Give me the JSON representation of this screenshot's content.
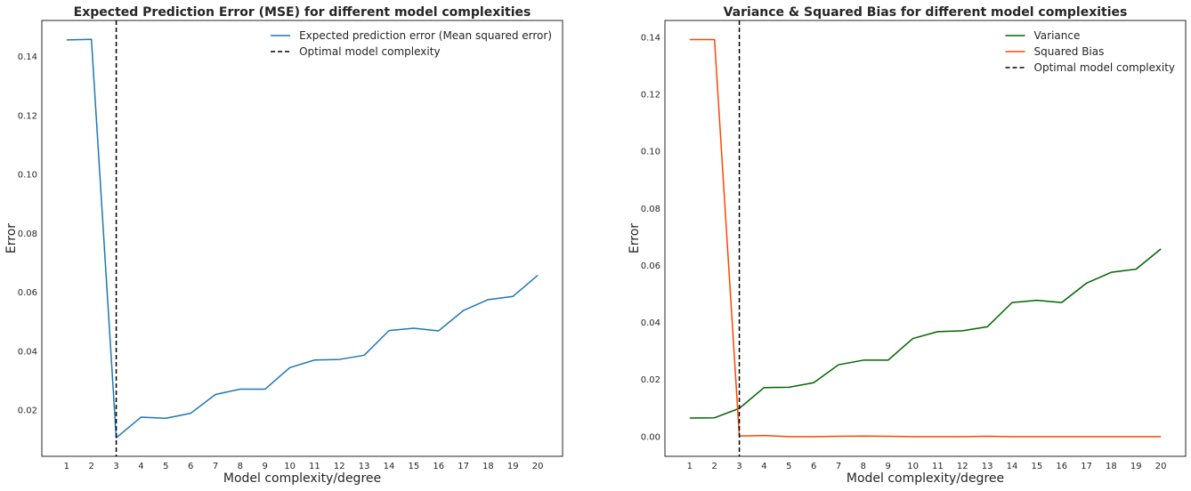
{
  "chart_data": [
    {
      "type": "line",
      "title": "Expected Prediction Error (MSE) for different model complexities",
      "xlabel": "Model complexity/degree",
      "ylabel": "Error",
      "x": [
        1,
        2,
        3,
        4,
        5,
        6,
        7,
        8,
        9,
        10,
        11,
        12,
        13,
        14,
        15,
        16,
        17,
        18,
        19,
        20
      ],
      "xticks": [
        "1",
        "2",
        "3",
        "4",
        "5",
        "6",
        "7",
        "8",
        "9",
        "10",
        "11",
        "12",
        "13",
        "14",
        "15",
        "16",
        "17",
        "18",
        "19",
        "20"
      ],
      "xlim": [
        0,
        21
      ],
      "ylim": [
        0.0043,
        0.1523
      ],
      "yticks": [
        "0.02",
        "0.04",
        "0.06",
        "0.08",
        "0.10",
        "0.12",
        "0.14"
      ],
      "ytick_values": [
        0.02,
        0.04,
        0.06,
        0.08,
        0.1,
        0.12,
        0.14
      ],
      "grid": false,
      "legend_position": "top-right",
      "series": [
        {
          "name": "Expected prediction error (Mean squared error)",
          "color": "#1f77b4",
          "style": "solid",
          "values": [
            0.1457,
            0.1459,
            0.0106,
            0.0176,
            0.0172,
            0.0189,
            0.0253,
            0.0271,
            0.0271,
            0.0344,
            0.037,
            0.0372,
            0.0386,
            0.047,
            0.0478,
            0.0469,
            0.0538,
            0.0575,
            0.0586,
            0.0658
          ]
        }
      ],
      "vline": {
        "name": "Optimal model complexity",
        "x": 3,
        "color": "#000000",
        "style": "dashed"
      }
    },
    {
      "type": "line",
      "title": "Variance & Squared Bias for different model complexities",
      "xlabel": "Model complexity/degree",
      "ylabel": "Error",
      "x": [
        1,
        2,
        3,
        4,
        5,
        6,
        7,
        8,
        9,
        10,
        11,
        12,
        13,
        14,
        15,
        16,
        17,
        18,
        19,
        20
      ],
      "xticks": [
        "1",
        "2",
        "3",
        "4",
        "5",
        "6",
        "7",
        "8",
        "9",
        "10",
        "11",
        "12",
        "13",
        "14",
        "15",
        "16",
        "17",
        "18",
        "19",
        "20"
      ],
      "xlim": [
        0,
        21
      ],
      "ylim": [
        -0.0069,
        0.1459
      ],
      "yticks": [
        "0.00",
        "0.02",
        "0.04",
        "0.06",
        "0.08",
        "0.10",
        "0.12",
        "0.14"
      ],
      "ytick_values": [
        0.0,
        0.02,
        0.04,
        0.06,
        0.08,
        0.1,
        0.12,
        0.14
      ],
      "grid": false,
      "legend_position": "top-right",
      "series": [
        {
          "name": "Variance",
          "color": "#006400",
          "style": "solid",
          "values": [
            0.0065,
            0.0066,
            0.0099,
            0.0172,
            0.0173,
            0.0189,
            0.0252,
            0.0268,
            0.0268,
            0.0344,
            0.0368,
            0.0371,
            0.0385,
            0.047,
            0.0478,
            0.047,
            0.0538,
            0.0576,
            0.0587,
            0.0658
          ]
        },
        {
          "name": "Squared Bias",
          "color": "#ff4500",
          "style": "solid",
          "values": [
            0.1392,
            0.1392,
            0.0002,
            0.0004,
            0.0,
            0.0,
            0.0001,
            0.0002,
            0.0001,
            0.0,
            0.0,
            0.0,
            0.0001,
            0.0,
            0.0,
            0.0,
            0.0,
            0.0,
            0.0,
            0.0
          ]
        }
      ],
      "vline": {
        "name": "Optimal model complexity",
        "x": 3,
        "color": "#000000",
        "style": "dashed"
      }
    }
  ]
}
